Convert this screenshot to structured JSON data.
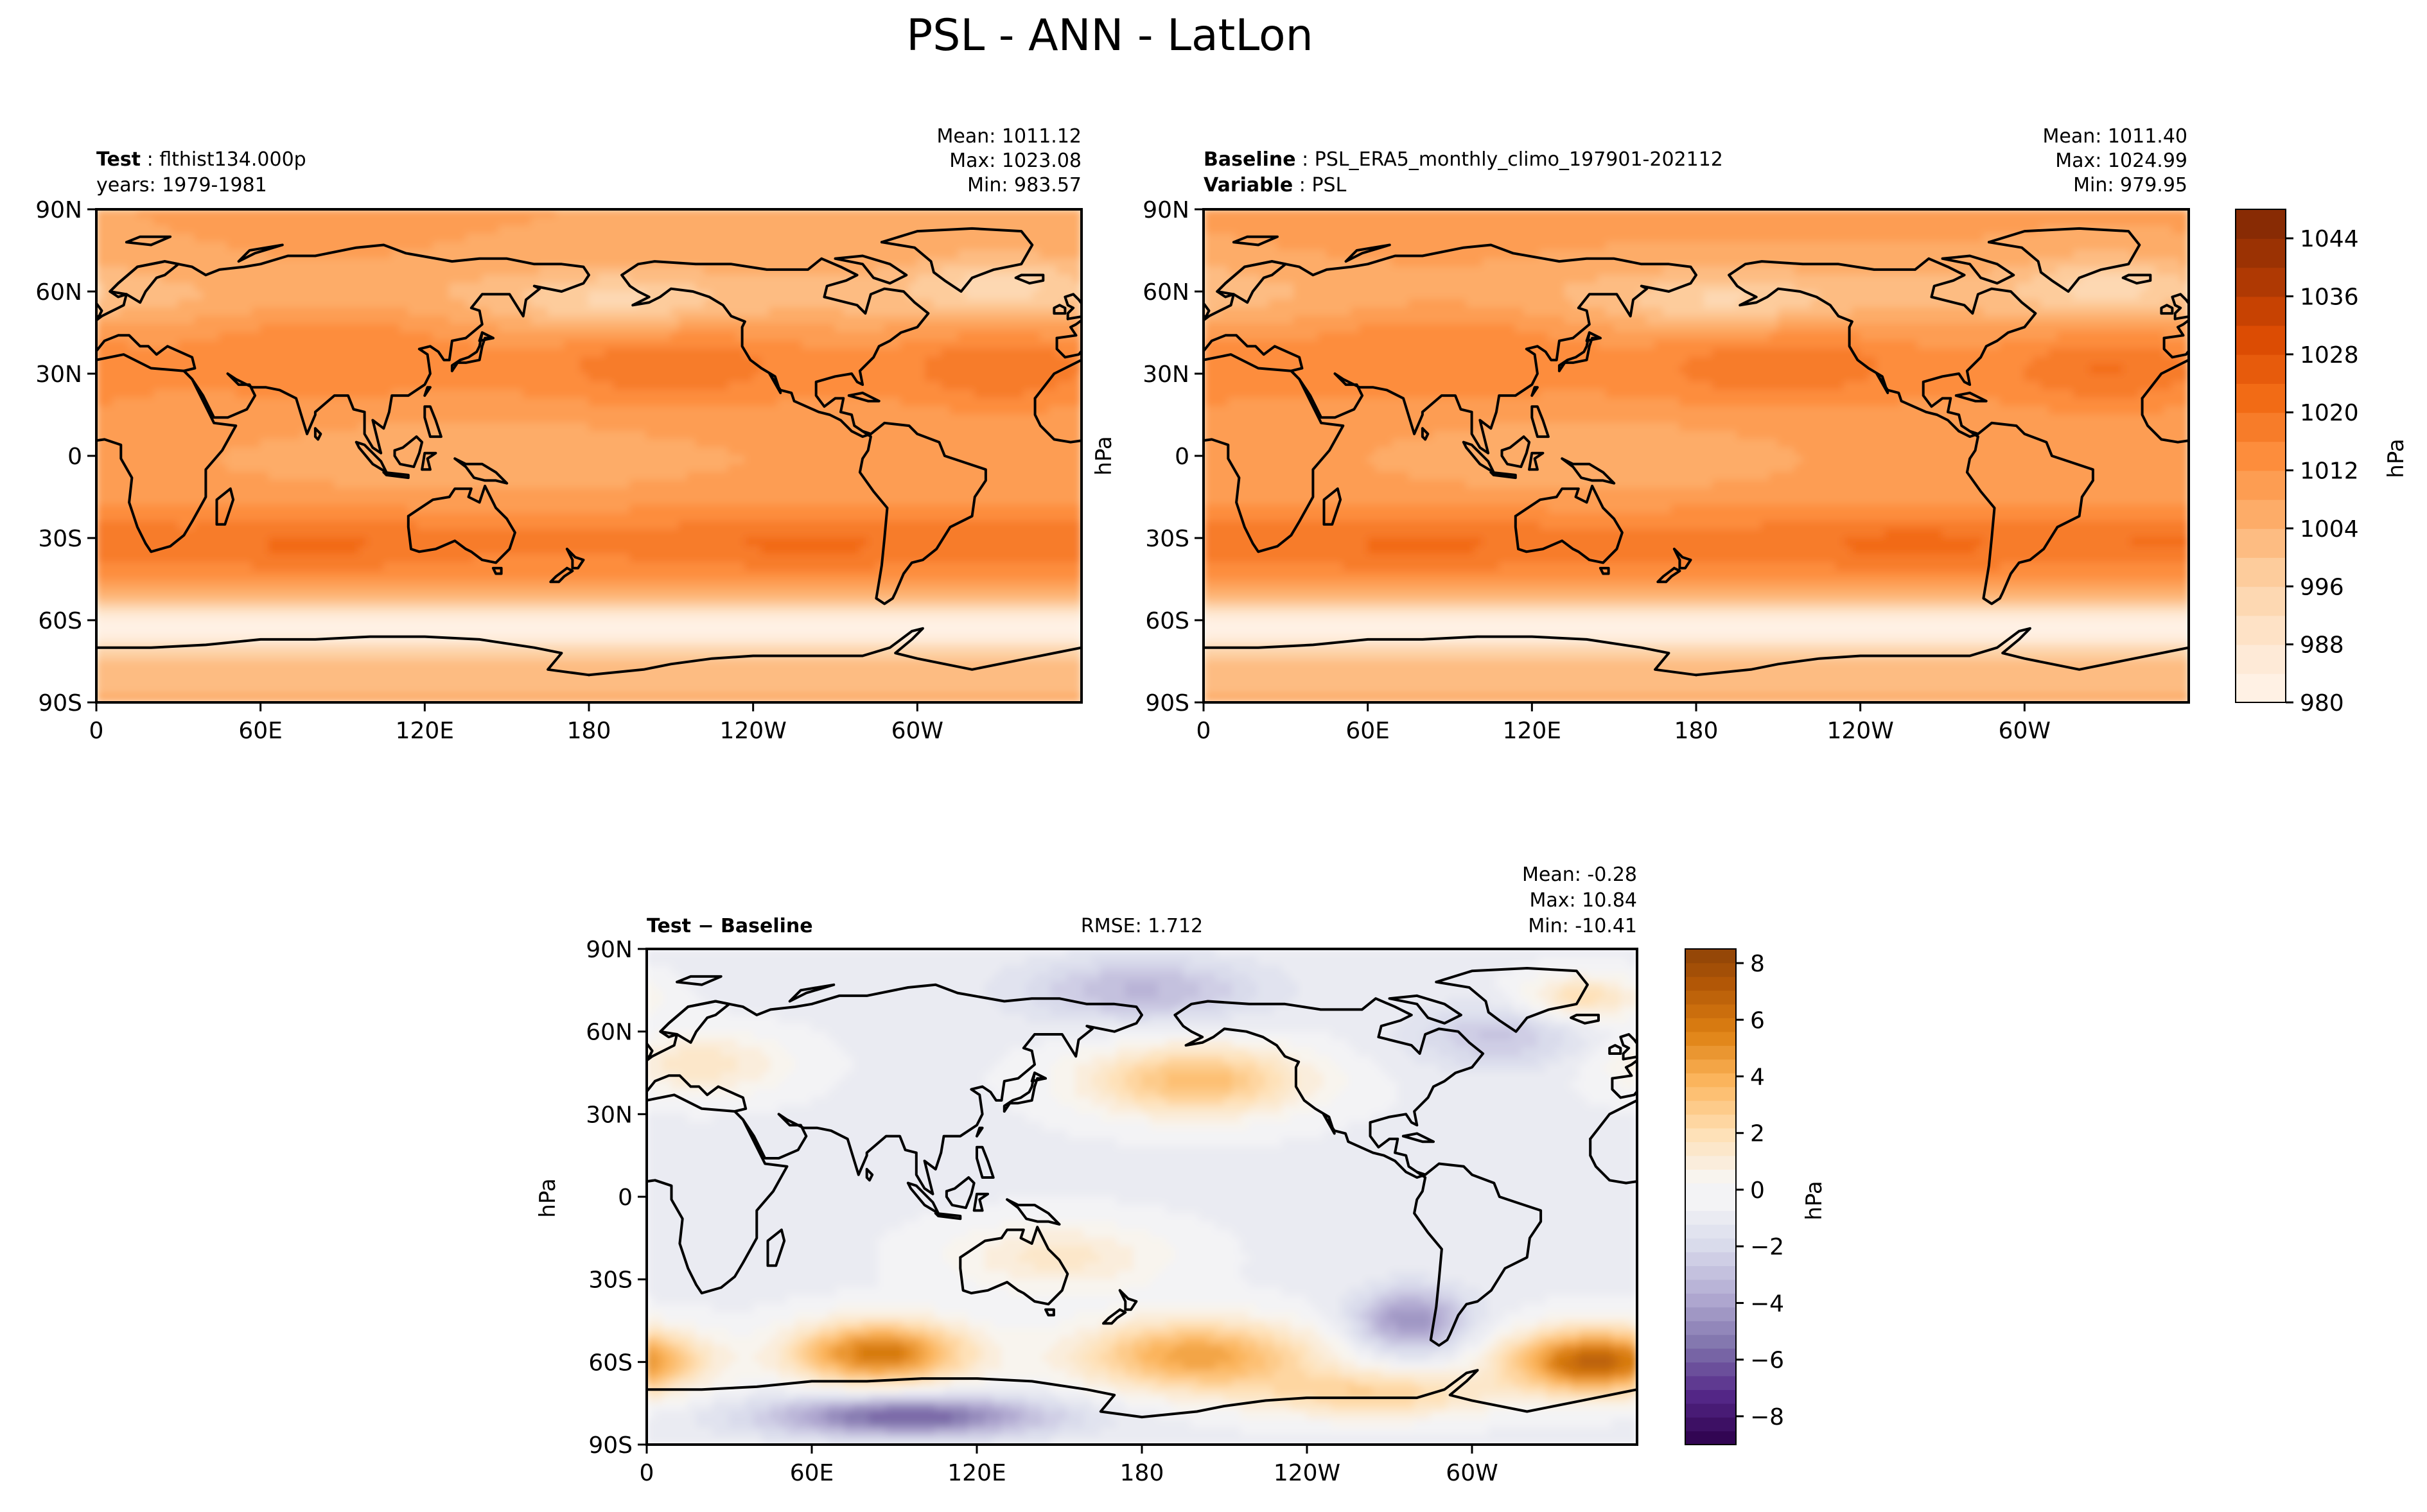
{
  "figure": {
    "title": "PSL - ANN - LatLon"
  },
  "chart_data": [
    {
      "type": "heatmap",
      "id": "test",
      "header": {
        "label_bold": "Test",
        "label_value": "flthist134.000p",
        "line2": "years: 1979-1981"
      },
      "stats": {
        "mean_text": "Mean: 1011.12",
        "max_text": "Max: 1023.08",
        "min_text": "Min: 983.57",
        "mean": 1011.12,
        "max": 1023.08,
        "min": 983.57
      },
      "xlabel": "",
      "ylabel": "",
      "x_ticks": [
        "0",
        "60E",
        "120E",
        "180",
        "120W",
        "60W"
      ],
      "x_tick_lons": [
        0,
        60,
        120,
        180,
        240,
        300
      ],
      "y_ticks": [
        "90N",
        "60N",
        "30N",
        "0",
        "30S",
        "60S",
        "90S"
      ],
      "y_tick_lats": [
        90,
        60,
        30,
        0,
        -30,
        -60,
        -90
      ],
      "xlim": [
        0,
        360
      ],
      "ylim": [
        -90,
        90
      ],
      "units": "hPa",
      "clim": [
        980,
        1048
      ],
      "colormap": "Oranges",
      "mean_adjust": 0
    },
    {
      "type": "heatmap",
      "id": "baseline",
      "header": {
        "label_bold": "Baseline",
        "label_value": "PSL_ERA5_monthly_climo_197901-202112",
        "line2_bold": "Variable",
        "line2_value": "PSL"
      },
      "stats": {
        "mean_text": "Mean: 1011.40",
        "max_text": "Max: 1024.99",
        "min_text": "Min: 979.95",
        "mean": 1011.4,
        "max": 1024.99,
        "min": 979.95
      },
      "xlabel": "",
      "ylabel": "hPa",
      "x_ticks": [
        "0",
        "60E",
        "120E",
        "180",
        "120W",
        "60W"
      ],
      "x_tick_lons": [
        0,
        60,
        120,
        180,
        240,
        300
      ],
      "y_ticks": [
        "90N",
        "60N",
        "30N",
        "0",
        "30S",
        "60S",
        "90S"
      ],
      "y_tick_lats": [
        90,
        60,
        30,
        0,
        -30,
        -60,
        -90
      ],
      "xlim": [
        0,
        360
      ],
      "ylim": [
        -90,
        90
      ],
      "units": "hPa",
      "clim": [
        980,
        1048
      ],
      "colormap": "Oranges",
      "mean_adjust": 0.3
    },
    {
      "type": "heatmap",
      "id": "diff",
      "header": {
        "label_bold": "Test − Baseline",
        "rmse_text": "RMSE: 1.712"
      },
      "stats": {
        "mean_text": "Mean: -0.28",
        "max_text": "Max: 10.84",
        "min_text": "Min: -10.41",
        "mean": -0.28,
        "max": 10.84,
        "min": -10.41,
        "rmse": 1.712
      },
      "xlabel": "",
      "ylabel": "hPa",
      "x_ticks": [
        "0",
        "60E",
        "120E",
        "180",
        "120W",
        "60W"
      ],
      "x_tick_lons": [
        0,
        60,
        120,
        180,
        240,
        300
      ],
      "y_ticks": [
        "90N",
        "60N",
        "30N",
        "0",
        "30S",
        "60S",
        "90S"
      ],
      "y_tick_lats": [
        90,
        60,
        30,
        0,
        -30,
        -60,
        -90
      ],
      "xlim": [
        0,
        360
      ],
      "ylim": [
        -90,
        90
      ],
      "units": "hPa",
      "clim": [
        -9,
        9
      ],
      "colormap": "PuOr_r"
    }
  ],
  "colorbars": {
    "abs": {
      "label": "hPa",
      "range": [
        980,
        1048
      ],
      "tick_labels": [
        "980",
        "988",
        "996",
        "1004",
        "1012",
        "1020",
        "1028",
        "1036",
        "1044"
      ],
      "tick_values": [
        980,
        988,
        996,
        1004,
        1012,
        1020,
        1028,
        1036,
        1044
      ],
      "levels": 17
    },
    "diff": {
      "label": "hPa",
      "range": [
        -9,
        8.5
      ],
      "tick_labels": [
        "−8",
        "−6",
        "−4",
        "−2",
        "0",
        "2",
        "4",
        "6",
        "8"
      ],
      "tick_values": [
        -8,
        -6,
        -4,
        -2,
        0,
        2,
        4,
        6,
        8
      ],
      "levels": 36
    }
  },
  "colors": {
    "abs_ramp": [
      "#fff5eb",
      "#fee6ce",
      "#fdd0a2",
      "#fdae6b",
      "#fd8d3c",
      "#f16913",
      "#d94801",
      "#a63603",
      "#7f2704"
    ],
    "diff_neg": [
      "#2d004b",
      "#542788",
      "#8073ac",
      "#b2abd2",
      "#d8daeb",
      "#f7f7f7"
    ],
    "diff_pos": [
      "#f7f7f7",
      "#fee0b6",
      "#fdb863",
      "#e08214",
      "#b35806",
      "#7f3b08"
    ],
    "coast": "#000000"
  }
}
